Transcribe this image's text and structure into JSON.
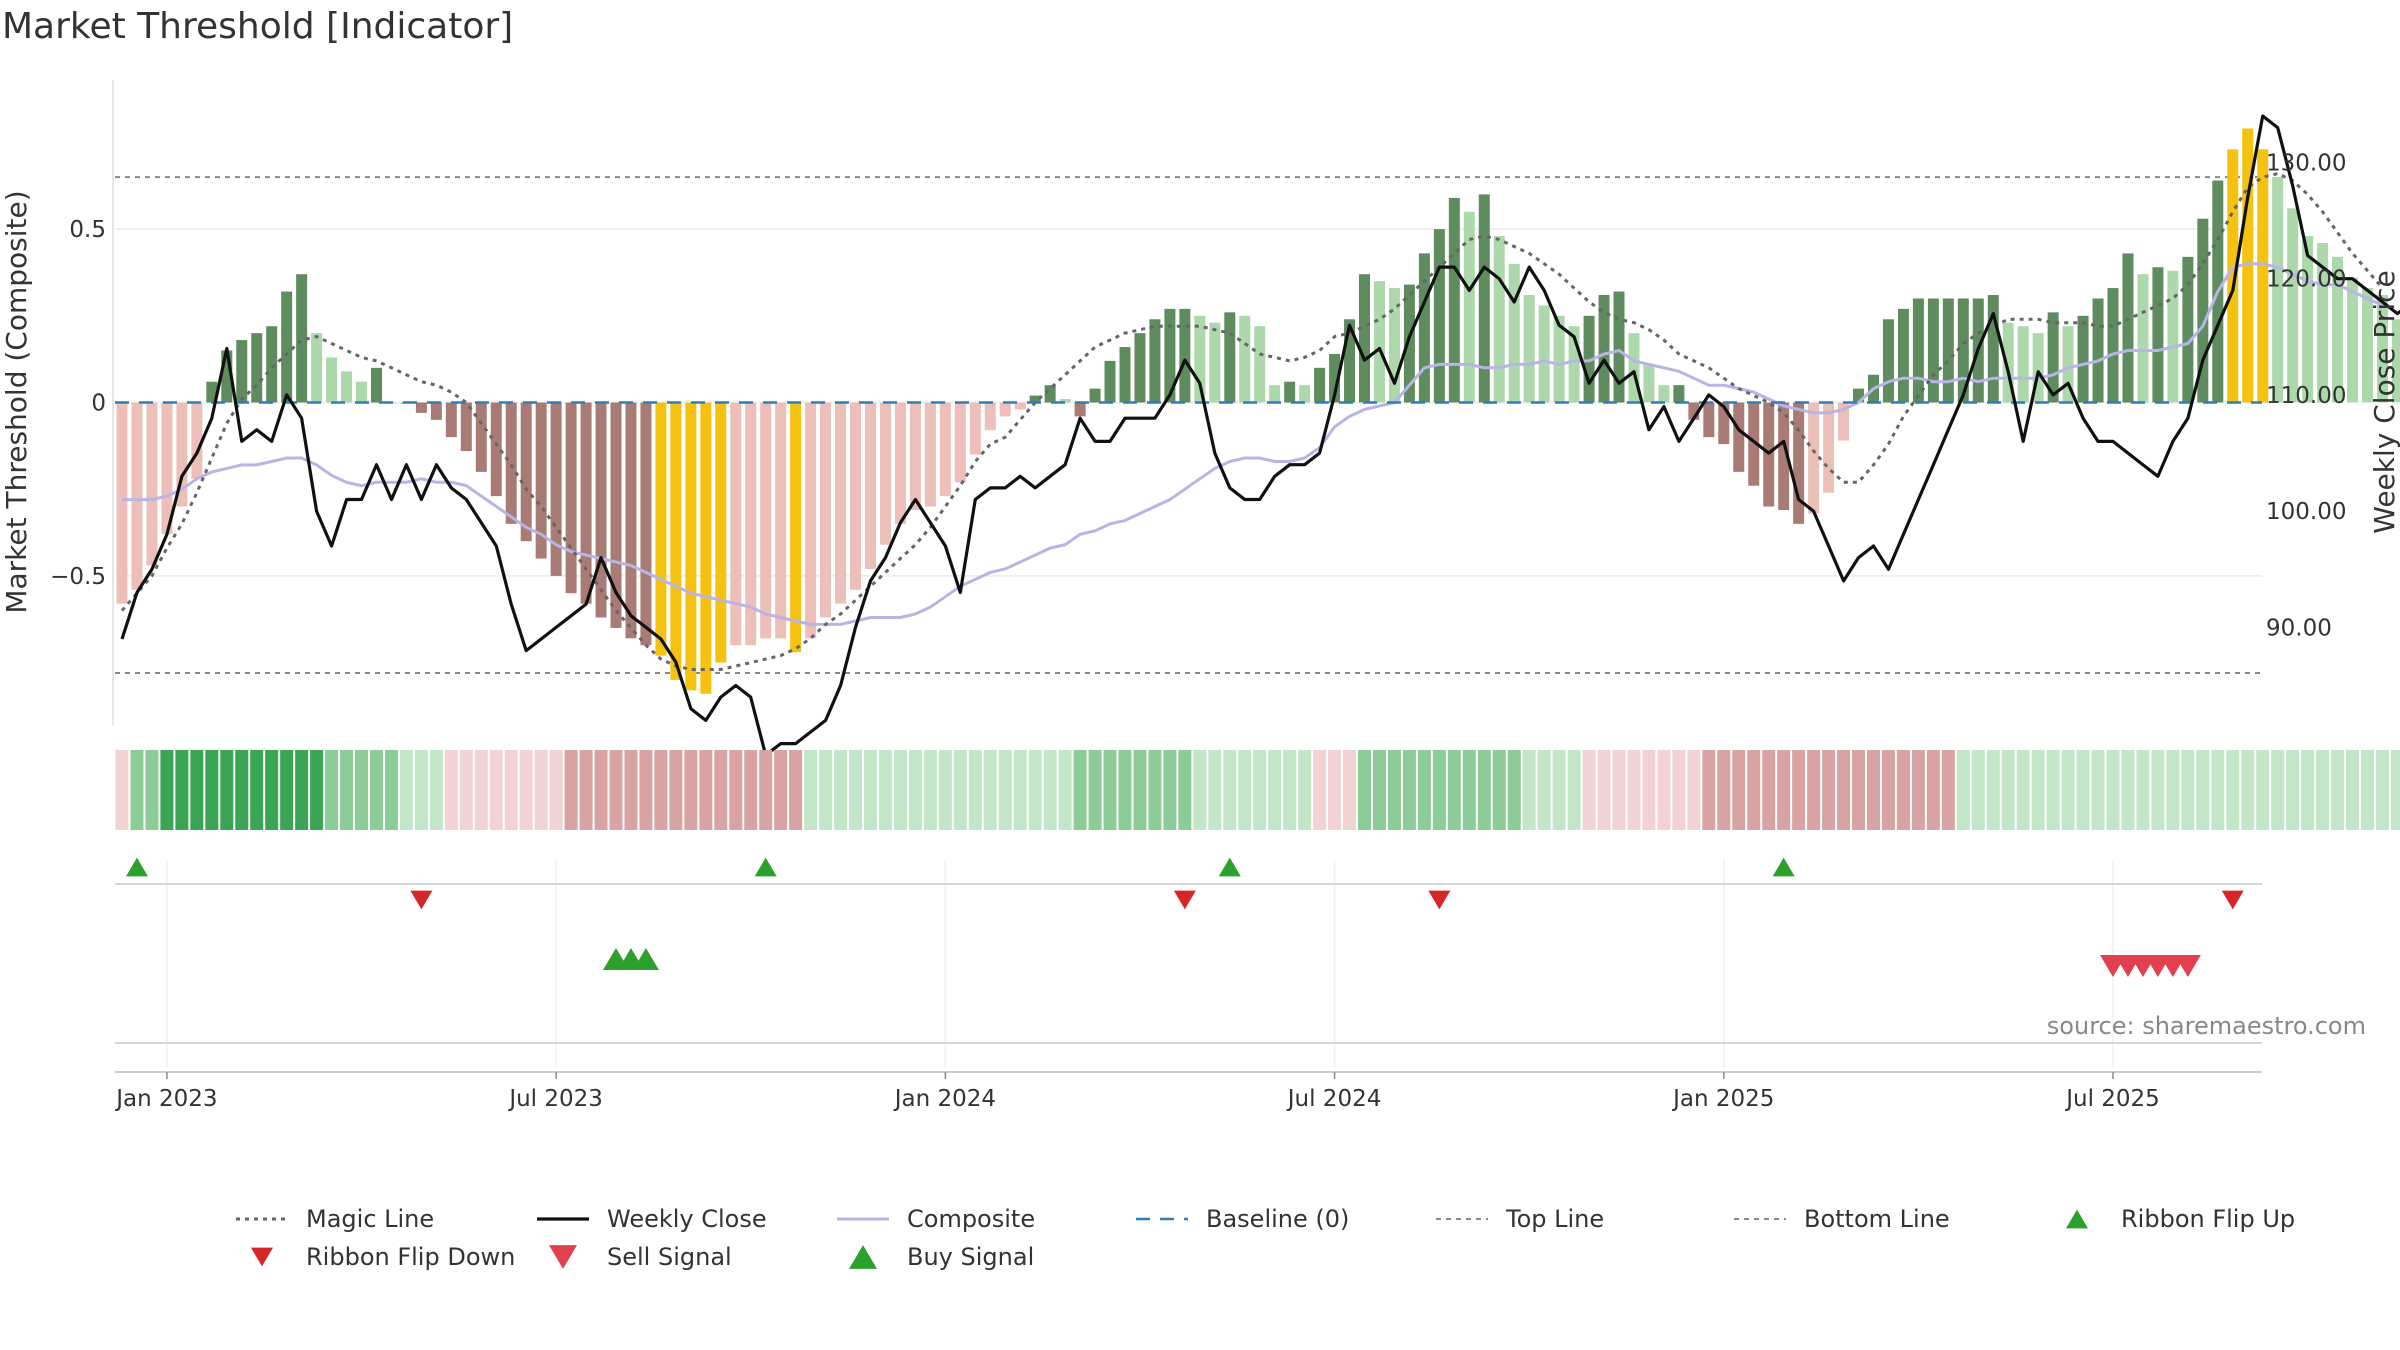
{
  "chart_data": {
    "type": "bar",
    "title": "Market Threshold [Indicator]",
    "ylabel_left": "Market Threshold (Composite)",
    "ylabel_right": "Weekly Close Price",
    "left_axis": {
      "ylim": [
        -0.93,
        0.93
      ],
      "ticks": [
        -0.5,
        0,
        0.5
      ],
      "tick_labels": [
        "−0.5",
        "0",
        "0.5"
      ]
    },
    "right_axis": {
      "ylim": [
        81.6,
        137.1
      ],
      "ticks": [
        90,
        100,
        110,
        120,
        130
      ],
      "tick_labels": [
        "90.00",
        "100.00",
        "110.00",
        "120.00",
        "130.00"
      ]
    },
    "x_ticks": [
      {
        "week": 3,
        "label": "Jan 2023"
      },
      {
        "week": 29,
        "label": "Jul 2023"
      },
      {
        "week": 55,
        "label": "Jan 2024"
      },
      {
        "week": 81,
        "label": "Jul 2024"
      },
      {
        "week": 107,
        "label": "Jan 2025"
      },
      {
        "week": 133,
        "label": "Jul 2025"
      }
    ],
    "x_range_weeks": [
      0,
      143
    ],
    "start_date": "2022-12-19",
    "top_line": 0.65,
    "bottom_line": -0.78,
    "baseline": 0,
    "grid": true,
    "colors": {
      "bar_pos_strong": "#5e8c5e",
      "bar_pos_weak": "#acd8ac",
      "bar_neg_strong": "#a97b75",
      "bar_neg_weak": "#ecbfb8",
      "bar_extreme": "#f5c211",
      "weekly_close": "#111111",
      "composite": "#b9b4e6",
      "magic_line": "#666666",
      "baseline": "#2c7fb8",
      "threshold_lines": "#888888",
      "signal_up": "#2ca02c",
      "signal_down": "#d62728",
      "sell_signal": "#e04050",
      "ribbon_green_dark": "#3aa655",
      "ribbon_green_light": "#c3e6c8",
      "ribbon_red_dark": "#d9a3a3",
      "ribbon_red_light": "#f1d3d3"
    },
    "composite_bars": [
      -0.58,
      -0.54,
      -0.47,
      -0.38,
      -0.3,
      -0.22,
      0.06,
      0.15,
      0.18,
      0.2,
      0.22,
      0.32,
      0.37,
      0.2,
      0.13,
      0.09,
      0.06,
      0.1,
      0,
      0,
      -0.03,
      -0.05,
      -0.1,
      -0.14,
      -0.2,
      -0.27,
      -0.35,
      -0.4,
      -0.45,
      -0.5,
      -0.55,
      -0.58,
      -0.62,
      -0.65,
      -0.68,
      -0.7,
      -0.73,
      -0.8,
      -0.83,
      -0.84,
      -0.75,
      -0.7,
      -0.7,
      -0.68,
      -0.68,
      -0.72,
      -0.68,
      -0.62,
      -0.58,
      -0.54,
      -0.48,
      -0.41,
      -0.35,
      -0.31,
      -0.3,
      -0.27,
      -0.23,
      -0.15,
      -0.08,
      -0.04,
      -0.02,
      0.02,
      0.05,
      0.01,
      -0.04,
      0.04,
      0.12,
      0.16,
      0.2,
      0.24,
      0.27,
      0.27,
      0.25,
      0.23,
      0.26,
      0.25,
      0.22,
      0.05,
      0.06,
      0.05,
      0.1,
      0.14,
      0.24,
      0.37,
      0.35,
      0.33,
      0.34,
      0.43,
      0.5,
      0.59,
      0.55,
      0.6,
      0.48,
      0.4,
      0.31,
      0.28,
      0.25,
      0.22,
      0.25,
      0.31,
      0.32,
      0.2,
      0.11,
      0.05,
      0.05,
      -0.05,
      -0.1,
      -0.12,
      -0.2,
      -0.24,
      -0.3,
      -0.31,
      -0.35,
      -0.32,
      -0.26,
      -0.11,
      0.04,
      0.08,
      0.24,
      0.27,
      0.3,
      0.3,
      0.3,
      0.3,
      0.3,
      0.31,
      0.23,
      0.22,
      0.2,
      0.26,
      0.22,
      0.25,
      0.3,
      0.33,
      0.43,
      0.37,
      0.39,
      0.38,
      0.42,
      0.53,
      0.64,
      0.73,
      0.79,
      0.73,
      0.65,
      0.56,
      0.48,
      0.46,
      0.42,
      0.36,
      0.33,
      0.31,
      0.24
    ],
    "weekly_close": [
      89,
      93,
      95,
      98,
      103,
      105,
      108,
      114,
      106,
      107,
      106,
      110,
      108,
      100,
      97,
      101,
      101,
      104,
      101,
      104,
      101,
      104,
      102,
      101,
      99,
      97,
      92,
      88,
      89,
      90,
      91,
      92,
      96,
      93,
      91,
      90,
      89,
      87,
      83,
      82,
      84,
      85,
      84,
      79,
      80,
      80,
      81,
      82,
      85,
      90,
      94,
      96,
      99,
      101,
      99,
      97,
      93,
      101,
      102,
      102,
      103,
      102,
      103,
      104,
      108,
      106,
      106,
      108,
      108,
      108,
      110,
      113,
      111,
      105,
      102,
      101,
      101,
      103,
      104,
      104,
      105,
      110,
      116,
      113,
      114,
      111,
      115,
      118,
      121,
      121,
      119,
      121,
      120,
      118,
      121,
      119,
      116,
      115,
      111,
      113,
      111,
      112,
      107,
      109,
      106,
      108,
      110,
      109,
      107,
      106,
      105,
      106,
      101,
      100,
      97,
      94,
      96,
      97,
      95,
      98,
      101,
      104,
      107,
      110,
      114,
      117,
      112,
      106,
      112,
      110,
      111,
      108,
      106,
      106,
      105,
      104,
      103,
      106,
      108,
      113,
      116,
      119,
      127,
      134,
      133,
      128,
      122,
      121,
      120,
      120,
      119,
      118,
      117,
      118
    ],
    "composite_line": [
      -0.28,
      -0.28,
      -0.28,
      -0.27,
      -0.25,
      -0.22,
      -0.2,
      -0.19,
      -0.18,
      -0.18,
      -0.17,
      -0.16,
      -0.16,
      -0.18,
      -0.21,
      -0.23,
      -0.24,
      -0.23,
      -0.23,
      -0.23,
      -0.22,
      -0.23,
      -0.23,
      -0.24,
      -0.27,
      -0.3,
      -0.33,
      -0.36,
      -0.38,
      -0.41,
      -0.43,
      -0.44,
      -0.45,
      -0.46,
      -0.47,
      -0.49,
      -0.51,
      -0.53,
      -0.55,
      -0.56,
      -0.57,
      -0.58,
      -0.59,
      -0.61,
      -0.62,
      -0.63,
      -0.64,
      -0.64,
      -0.64,
      -0.63,
      -0.62,
      -0.62,
      -0.62,
      -0.61,
      -0.59,
      -0.56,
      -0.53,
      -0.51,
      -0.49,
      -0.48,
      -0.46,
      -0.44,
      -0.42,
      -0.41,
      -0.38,
      -0.37,
      -0.35,
      -0.34,
      -0.32,
      -0.3,
      -0.28,
      -0.25,
      -0.22,
      -0.19,
      -0.17,
      -0.16,
      -0.16,
      -0.17,
      -0.17,
      -0.16,
      -0.13,
      -0.07,
      -0.04,
      -0.02,
      -0.01,
      0,
      0.05,
      0.1,
      0.11,
      0.11,
      0.11,
      0.1,
      0.1,
      0.11,
      0.11,
      0.12,
      0.11,
      0.12,
      0.12,
      0.14,
      0.15,
      0.12,
      0.11,
      0.1,
      0.09,
      0.07,
      0.05,
      0.05,
      0.04,
      0.03,
      0.01,
      -0.01,
      -0.02,
      -0.03,
      -0.03,
      -0.02,
      0,
      0.04,
      0.06,
      0.07,
      0.07,
      0.06,
      0.06,
      0.07,
      0.06,
      0.07,
      0.07,
      0.07,
      0.07,
      0.08,
      0.1,
      0.11,
      0.12,
      0.14,
      0.15,
      0.15,
      0.15,
      0.16,
      0.17,
      0.22,
      0.32,
      0.39,
      0.4,
      0.4,
      0.39,
      0.37,
      0.35,
      0.34,
      0.34,
      0.32,
      0.3,
      0.28
    ],
    "magic_line": [
      -0.6,
      -0.55,
      -0.5,
      -0.42,
      -0.35,
      -0.26,
      -0.16,
      -0.06,
      0.01,
      0.05,
      0.1,
      0.14,
      0.18,
      0.19,
      0.17,
      0.15,
      0.13,
      0.12,
      0.1,
      0.08,
      0.06,
      0.05,
      0.03,
      0,
      -0.06,
      -0.12,
      -0.18,
      -0.25,
      -0.3,
      -0.36,
      -0.42,
      -0.48,
      -0.54,
      -0.6,
      -0.65,
      -0.7,
      -0.74,
      -0.76,
      -0.77,
      -0.77,
      -0.77,
      -0.76,
      -0.75,
      -0.74,
      -0.73,
      -0.71,
      -0.68,
      -0.64,
      -0.61,
      -0.57,
      -0.53,
      -0.49,
      -0.45,
      -0.41,
      -0.36,
      -0.3,
      -0.24,
      -0.17,
      -0.12,
      -0.1,
      -0.05,
      0,
      0.04,
      0.08,
      0.12,
      0.16,
      0.18,
      0.2,
      0.21,
      0.22,
      0.22,
      0.22,
      0.22,
      0.21,
      0.2,
      0.17,
      0.14,
      0.13,
      0.12,
      0.13,
      0.15,
      0.19,
      0.2,
      0.22,
      0.24,
      0.27,
      0.31,
      0.35,
      0.39,
      0.43,
      0.47,
      0.48,
      0.47,
      0.45,
      0.43,
      0.4,
      0.37,
      0.33,
      0.29,
      0.26,
      0.24,
      0.23,
      0.21,
      0.18,
      0.14,
      0.12,
      0.1,
      0.07,
      0.04,
      0.02,
      0,
      -0.03,
      -0.08,
      -0.14,
      -0.19,
      -0.23,
      -0.23,
      -0.18,
      -0.12,
      -0.04,
      0.02,
      0.08,
      0.12,
      0.17,
      0.2,
      0.22,
      0.24,
      0.24,
      0.24,
      0.23,
      0.23,
      0.23,
      0.22,
      0.22,
      0.24,
      0.26,
      0.28,
      0.3,
      0.34,
      0.4,
      0.47,
      0.55,
      0.62,
      0.65,
      0.66,
      0.64,
      0.6,
      0.55,
      0.49,
      0.43,
      0.38,
      0.33
    ],
    "ribbon": [
      -1,
      2,
      2,
      3,
      3,
      3,
      3,
      3,
      3,
      3,
      3,
      3,
      3,
      3,
      2,
      2,
      2,
      2,
      2,
      1,
      1,
      1,
      -1,
      -1,
      -1,
      -1,
      -1,
      -1,
      -1,
      -1,
      -2,
      -2,
      -2,
      -2,
      -2,
      -2,
      -2,
      -2,
      -2,
      -2,
      -2,
      -2,
      -2,
      -2,
      -2,
      -2,
      1,
      1,
      1,
      1,
      1,
      1,
      1,
      1,
      1,
      1,
      1,
      1,
      1,
      1,
      1,
      1,
      1,
      1,
      2,
      2,
      2,
      2,
      2,
      2,
      2,
      2,
      1,
      1,
      1,
      1,
      1,
      1,
      1,
      1,
      -1,
      -1,
      -1,
      2,
      2,
      2,
      2,
      2,
      2,
      2,
      2,
      2,
      2,
      2,
      1,
      1,
      1,
      1,
      -1,
      -1,
      -1,
      -1,
      -1,
      -1,
      -1,
      -1,
      -2,
      -2,
      -2,
      -2,
      -2,
      -2,
      -2,
      -2,
      -2,
      -2,
      -2,
      -2,
      -2,
      -2,
      -2,
      -2,
      -2,
      1,
      1,
      1,
      1,
      1,
      1,
      1,
      1,
      1,
      1,
      1,
      1,
      1,
      1,
      1,
      1,
      1,
      1,
      1,
      1,
      1,
      1,
      1,
      1,
      1,
      1,
      1,
      1,
      1,
      1,
      1,
      1,
      -1,
      -1,
      -1
    ],
    "ribbon_flip_up": [
      1,
      43,
      74,
      111
    ],
    "ribbon_flip_down": [
      20,
      71,
      88,
      141
    ],
    "buy_signal": [
      33,
      34,
      35
    ],
    "sell_signal": [
      133,
      134,
      135,
      136,
      137,
      138
    ],
    "legend": [
      {
        "key": "magic",
        "label": "Magic Line"
      },
      {
        "key": "close",
        "label": "Weekly Close"
      },
      {
        "key": "composite",
        "label": "Composite"
      },
      {
        "key": "baseline",
        "label": "Baseline (0)"
      },
      {
        "key": "top",
        "label": "Top Line"
      },
      {
        "key": "bottom",
        "label": "Bottom Line"
      },
      {
        "key": "flip_up",
        "label": "Ribbon Flip Up"
      },
      {
        "key": "flip_down",
        "label": "Ribbon Flip Down"
      },
      {
        "key": "sell",
        "label": "Sell Signal"
      },
      {
        "key": "buy",
        "label": "Buy Signal"
      }
    ],
    "source": "source: sharemaestro.com"
  }
}
